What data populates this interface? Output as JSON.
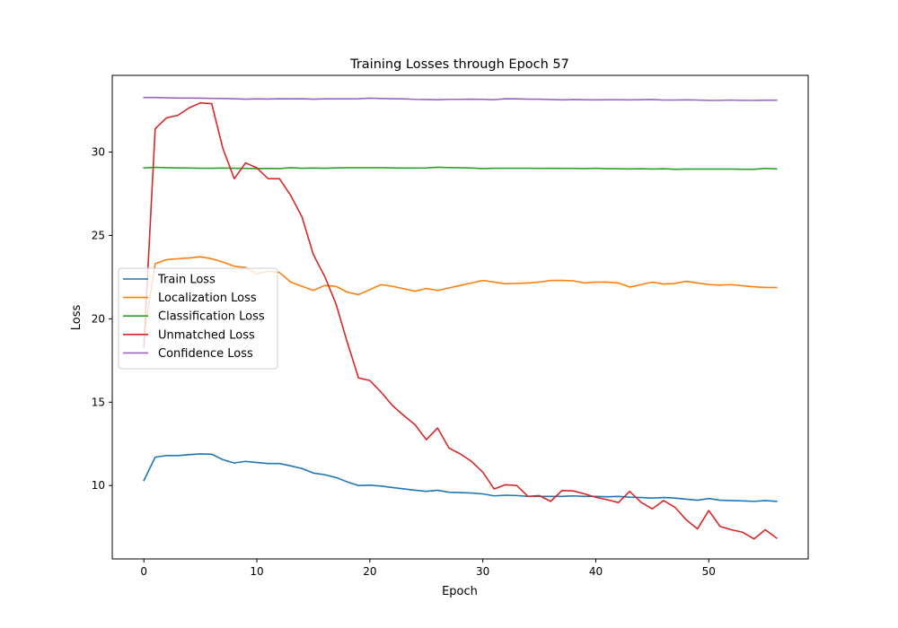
{
  "chart_data": {
    "type": "line",
    "title": "Training Losses through Epoch 57",
    "xlabel": "Epoch",
    "ylabel": "Loss",
    "xlim": [
      -2.8,
      58.8
    ],
    "ylim": [
      5.6,
      34.6
    ],
    "xticks": [
      0,
      10,
      20,
      30,
      40,
      50
    ],
    "yticks": [
      10,
      15,
      20,
      25,
      30
    ],
    "grid": false,
    "legend": "center-left",
    "x": [
      0,
      1,
      2,
      3,
      4,
      5,
      6,
      7,
      8,
      9,
      10,
      11,
      12,
      13,
      14,
      15,
      16,
      17,
      18,
      19,
      20,
      21,
      22,
      23,
      24,
      25,
      26,
      27,
      28,
      29,
      30,
      31,
      32,
      33,
      34,
      35,
      36,
      37,
      38,
      39,
      40,
      41,
      42,
      43,
      44,
      45,
      46,
      47,
      48,
      49,
      50,
      51,
      52,
      53,
      54,
      55,
      56
    ],
    "series": [
      {
        "name": "Train Loss",
        "color": "#1f77b4",
        "values": [
          10.3,
          11.7,
          11.8,
          11.8,
          11.85,
          11.9,
          11.88,
          11.55,
          11.35,
          11.45,
          11.38,
          11.32,
          11.32,
          11.18,
          11.02,
          10.75,
          10.65,
          10.48,
          10.22,
          10.0,
          10.02,
          9.97,
          9.88,
          9.8,
          9.72,
          9.65,
          9.72,
          9.6,
          9.58,
          9.55,
          9.5,
          9.38,
          9.42,
          9.4,
          9.35,
          9.35,
          9.35,
          9.35,
          9.38,
          9.35,
          9.35,
          9.33,
          9.35,
          9.3,
          9.28,
          9.25,
          9.28,
          9.25,
          9.18,
          9.12,
          9.22,
          9.12,
          9.1,
          9.08,
          9.05,
          9.1,
          9.05
        ]
      },
      {
        "name": "Localization Loss",
        "color": "#ff7f0e",
        "values": [
          19.0,
          23.3,
          23.55,
          23.6,
          23.65,
          23.72,
          23.6,
          23.4,
          23.15,
          23.08,
          22.7,
          22.85,
          22.78,
          22.2,
          21.95,
          21.7,
          22.0,
          21.95,
          21.6,
          21.45,
          21.75,
          22.05,
          21.95,
          21.8,
          21.65,
          21.82,
          21.7,
          21.85,
          22.0,
          22.15,
          22.3,
          22.2,
          22.1,
          22.12,
          22.15,
          22.2,
          22.3,
          22.3,
          22.28,
          22.15,
          22.2,
          22.2,
          22.15,
          21.9,
          22.05,
          22.2,
          22.08,
          22.12,
          22.25,
          22.15,
          22.05,
          22.02,
          22.05,
          21.98,
          21.92,
          21.88,
          21.88
        ]
      },
      {
        "name": "Classification Loss",
        "color": "#2ca02c",
        "values": [
          29.05,
          29.08,
          29.06,
          29.05,
          29.04,
          29.03,
          29.03,
          29.04,
          29.03,
          29.02,
          29.01,
          29.02,
          29.01,
          29.06,
          29.03,
          29.04,
          29.03,
          29.05,
          29.06,
          29.06,
          29.06,
          29.06,
          29.05,
          29.04,
          29.04,
          29.05,
          29.09,
          29.07,
          29.06,
          29.04,
          29.01,
          29.03,
          29.03,
          29.03,
          29.03,
          29.02,
          29.03,
          29.02,
          29.02,
          29.01,
          29.03,
          29.0,
          29.0,
          28.99,
          29.0,
          28.98,
          29.0,
          28.97,
          28.98,
          28.98,
          28.98,
          28.98,
          28.98,
          28.97,
          28.97,
          29.02,
          28.99
        ]
      },
      {
        "name": "Unmatched Loss",
        "color": "#d62728",
        "values": [
          18.3,
          31.4,
          32.05,
          32.2,
          32.65,
          32.95,
          32.9,
          30.2,
          28.4,
          29.35,
          29.05,
          28.4,
          28.4,
          27.4,
          26.1,
          23.85,
          22.55,
          20.9,
          18.6,
          16.45,
          16.3,
          15.6,
          14.8,
          14.2,
          13.65,
          12.75,
          13.45,
          12.25,
          11.9,
          11.45,
          10.8,
          9.8,
          10.05,
          10.0,
          9.35,
          9.4,
          9.05,
          9.7,
          9.68,
          9.5,
          9.3,
          9.15,
          8.98,
          9.65,
          9.0,
          8.6,
          9.1,
          8.7,
          7.95,
          7.4,
          8.5,
          7.55,
          7.35,
          7.2,
          6.8,
          7.35,
          6.85
        ]
      },
      {
        "name": "Confidence Loss",
        "color": "#9467bd",
        "values": [
          33.27,
          33.27,
          33.25,
          33.24,
          33.24,
          33.23,
          33.22,
          33.21,
          33.2,
          33.17,
          33.19,
          33.18,
          33.2,
          33.19,
          33.2,
          33.17,
          33.19,
          33.19,
          33.19,
          33.2,
          33.23,
          33.21,
          33.2,
          33.19,
          33.16,
          33.15,
          33.14,
          33.16,
          33.16,
          33.17,
          33.16,
          33.14,
          33.2,
          33.19,
          33.17,
          33.17,
          33.15,
          33.13,
          33.15,
          33.14,
          33.13,
          33.14,
          33.14,
          33.13,
          33.14,
          33.15,
          33.12,
          33.12,
          33.13,
          33.12,
          33.1,
          33.1,
          33.12,
          33.1,
          33.1,
          33.11,
          33.11
        ]
      }
    ]
  }
}
